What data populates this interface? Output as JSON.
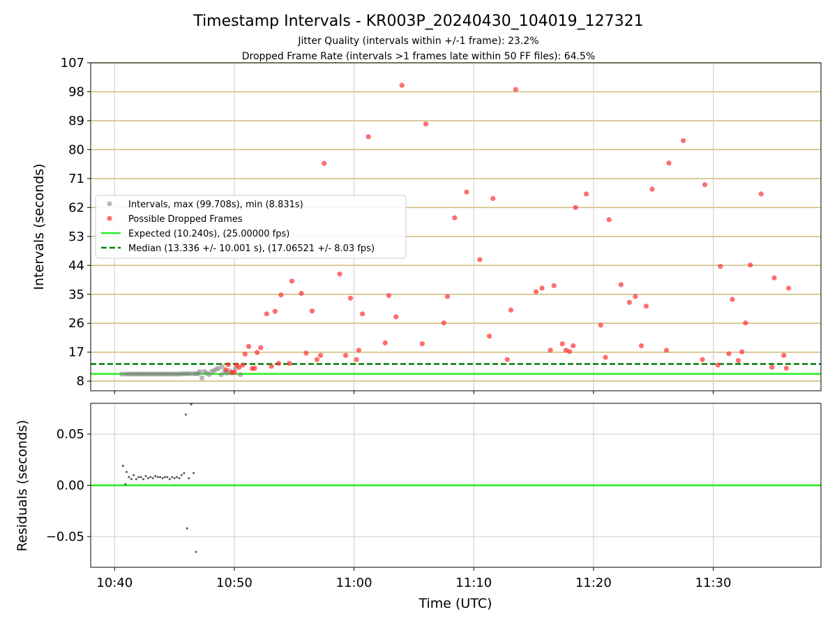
{
  "figure": {
    "title": "Timestamp Intervals - KR003P_20240430_104019_127321",
    "subtitle1": "Jitter Quality (intervals within +/-1 frame): 23.2%",
    "subtitle2": "Dropped Frame Rate (intervals >1 frames late within 50 FF files): 64.5%",
    "xlabel": "Time (UTC)"
  },
  "colors": {
    "gray_points": "#808080",
    "red_points": "#ff3030",
    "expected_line": "#22ee22",
    "median_line": "#007f00",
    "frame_lines": "#cfb97a",
    "grid": "#cccccc"
  },
  "chart_data": [
    {
      "type": "scatter",
      "name": "intervals",
      "ylabel": "Intervals (seconds)",
      "ylim": [
        5.0,
        107.0
      ],
      "xlim_minutes": [
        38.0,
        99.0
      ],
      "x_ticks": [
        {
          "label": "10:40",
          "minute": 40
        },
        {
          "label": "10:50",
          "minute": 50
        },
        {
          "label": "11:00",
          "minute": 60
        },
        {
          "label": "11:10",
          "minute": 70
        },
        {
          "label": "11:20",
          "minute": 80
        },
        {
          "label": "11:30",
          "minute": 90
        }
      ],
      "y_ticks": [
        8,
        17,
        26,
        35,
        44,
        53,
        62,
        71,
        80,
        89,
        98,
        107
      ],
      "grid": true,
      "legend_position": "center-left",
      "legend": [
        {
          "label": "Intervals, max (99.708s), min (8.831s)",
          "kind": "gray-dot"
        },
        {
          "label": "Possible Dropped Frames",
          "kind": "red-dot"
        },
        {
          "label": "Expected (10.240s), (25.00000 fps)",
          "kind": "green-line"
        },
        {
          "label": "Median (13.336 +/- 10.001 s), (17.06521 +/- 8.03 fps)",
          "kind": "dashed-line"
        }
      ],
      "expected_value": 10.24,
      "median_value": 13.336,
      "series": [
        {
          "name": "Intervals, max (99.708s), min (8.831s)",
          "points": [
            [
              40.6,
              10.2
            ],
            [
              40.9,
              10.2
            ],
            [
              41.1,
              10.2
            ],
            [
              41.3,
              10.2
            ],
            [
              41.5,
              10.2
            ],
            [
              41.7,
              10.2
            ],
            [
              41.9,
              10.2
            ],
            [
              42.1,
              10.2
            ],
            [
              42.3,
              10.2
            ],
            [
              42.5,
              10.2
            ],
            [
              42.7,
              10.2
            ],
            [
              42.9,
              10.2
            ],
            [
              43.1,
              10.2
            ],
            [
              43.3,
              10.2
            ],
            [
              43.5,
              10.2
            ],
            [
              43.7,
              10.2
            ],
            [
              43.9,
              10.2
            ],
            [
              44.1,
              10.2
            ],
            [
              44.3,
              10.2
            ],
            [
              44.5,
              10.2
            ],
            [
              44.7,
              10.2
            ],
            [
              44.9,
              10.2
            ],
            [
              45.1,
              10.2
            ],
            [
              45.3,
              10.2
            ],
            [
              45.5,
              10.2
            ],
            [
              45.7,
              10.3
            ],
            [
              45.9,
              10.3
            ],
            [
              46.1,
              10.3
            ],
            [
              46.3,
              10.3
            ],
            [
              46.6,
              10.3
            ],
            [
              46.8,
              10.3
            ],
            [
              47.0,
              10.3
            ],
            [
              47.1,
              11.0
            ],
            [
              47.3,
              9.0
            ],
            [
              47.5,
              11.0
            ],
            [
              47.7,
              10.5
            ],
            [
              47.9,
              10.0
            ],
            [
              48.1,
              11.0
            ],
            [
              48.3,
              11.3
            ],
            [
              48.5,
              11.7
            ],
            [
              48.7,
              12.0
            ],
            [
              48.9,
              10.0
            ],
            [
              49.0,
              12.5
            ],
            [
              49.2,
              11.0
            ],
            [
              49.4,
              10.5
            ],
            [
              49.6,
              11.2
            ],
            [
              49.8,
              10.8
            ],
            [
              50.1,
              12.0
            ],
            [
              50.5,
              10.0
            ]
          ]
        },
        {
          "name": "Possible Dropped Frames",
          "points": [
            [
              49.3,
              11.5
            ],
            [
              49.5,
              13.1
            ],
            [
              49.8,
              10.6
            ],
            [
              50.0,
              10.8
            ],
            [
              50.2,
              13.0
            ],
            [
              50.4,
              12.3
            ],
            [
              50.7,
              13.0
            ],
            [
              50.9,
              16.4
            ],
            [
              51.2,
              18.8
            ],
            [
              51.5,
              11.9
            ],
            [
              51.7,
              12.0
            ],
            [
              51.9,
              16.9
            ],
            [
              52.2,
              18.4
            ],
            [
              52.7,
              28.9
            ],
            [
              53.1,
              12.6
            ],
            [
              53.4,
              29.7
            ],
            [
              53.7,
              13.5
            ],
            [
              53.9,
              34.8
            ],
            [
              54.6,
              13.5
            ],
            [
              54.8,
              39.1
            ],
            [
              55.6,
              35.3
            ],
            [
              56.0,
              16.7
            ],
            [
              56.5,
              29.8
            ],
            [
              56.9,
              14.7
            ],
            [
              57.2,
              16.0
            ],
            [
              57.5,
              75.7
            ],
            [
              58.8,
              41.3
            ],
            [
              59.3,
              16.0
            ],
            [
              59.7,
              33.8
            ],
            [
              60.2,
              14.7
            ],
            [
              60.4,
              17.6
            ],
            [
              60.7,
              28.9
            ],
            [
              61.2,
              84.0
            ],
            [
              62.6,
              19.9
            ],
            [
              62.9,
              34.6
            ],
            [
              63.5,
              28.0
            ],
            [
              64.0,
              100.0
            ],
            [
              65.7,
              19.6
            ],
            [
              66.0,
              88.0
            ],
            [
              67.5,
              26.1
            ],
            [
              67.8,
              34.3
            ],
            [
              68.4,
              58.8
            ],
            [
              69.4,
              66.8
            ],
            [
              70.5,
              45.8
            ],
            [
              71.3,
              22.0
            ],
            [
              71.6,
              64.8
            ],
            [
              72.8,
              14.7
            ],
            [
              73.1,
              30.1
            ],
            [
              73.5,
              98.7
            ],
            [
              75.2,
              35.8
            ],
            [
              75.7,
              36.9
            ],
            [
              76.4,
              17.6
            ],
            [
              76.7,
              37.7
            ],
            [
              77.4,
              19.6
            ],
            [
              77.7,
              17.6
            ],
            [
              78.0,
              17.2
            ],
            [
              78.3,
              19.0
            ],
            [
              78.5,
              62.0
            ],
            [
              79.4,
              66.2
            ],
            [
              80.6,
              25.4
            ],
            [
              81.0,
              15.4
            ],
            [
              81.3,
              58.2
            ],
            [
              82.3,
              38.0
            ],
            [
              83.0,
              32.5
            ],
            [
              83.5,
              34.3
            ],
            [
              84.0,
              19.0
            ],
            [
              84.4,
              31.3
            ],
            [
              84.9,
              67.7
            ],
            [
              86.1,
              17.6
            ],
            [
              86.3,
              75.8
            ],
            [
              87.5,
              82.8
            ],
            [
              89.1,
              14.7
            ],
            [
              89.3,
              69.1
            ],
            [
              90.4,
              13.0
            ],
            [
              90.6,
              43.7
            ],
            [
              91.3,
              16.5
            ],
            [
              91.6,
              33.4
            ],
            [
              92.1,
              14.4
            ],
            [
              92.4,
              17.1
            ],
            [
              92.7,
              26.1
            ],
            [
              93.1,
              44.1
            ],
            [
              94.0,
              66.2
            ],
            [
              94.9,
              12.3
            ],
            [
              95.1,
              40.1
            ],
            [
              95.9,
              16.0
            ],
            [
              96.1,
              12.0
            ],
            [
              96.3,
              36.9
            ]
          ]
        }
      ]
    },
    {
      "type": "scatter",
      "name": "residuals",
      "ylabel": "Residuals (seconds)",
      "ylim": [
        -0.08,
        0.08
      ],
      "y_ticks": [
        {
          "label": "0.05",
          "value": 0.05
        },
        {
          "label": "0.00",
          "value": 0.0
        },
        {
          "label": "−0.05",
          "value": -0.05
        }
      ],
      "zero_line": 0.0,
      "grid": true,
      "series": [
        {
          "name": "residuals",
          "points": [
            [
              40.7,
              0.019
            ],
            [
              40.9,
              0.001
            ],
            [
              41.0,
              0.013
            ],
            [
              41.2,
              0.008
            ],
            [
              41.4,
              0.006
            ],
            [
              41.6,
              0.01
            ],
            [
              41.8,
              0.006
            ],
            [
              42.0,
              0.008
            ],
            [
              42.2,
              0.008
            ],
            [
              42.4,
              0.006
            ],
            [
              42.6,
              0.009
            ],
            [
              42.8,
              0.007
            ],
            [
              43.0,
              0.008
            ],
            [
              43.2,
              0.007
            ],
            [
              43.4,
              0.009
            ],
            [
              43.6,
              0.008
            ],
            [
              43.8,
              0.008
            ],
            [
              44.0,
              0.007
            ],
            [
              44.2,
              0.008
            ],
            [
              44.4,
              0.008
            ],
            [
              44.6,
              0.006
            ],
            [
              44.8,
              0.008
            ],
            [
              45.0,
              0.007
            ],
            [
              45.2,
              0.008
            ],
            [
              45.4,
              0.007
            ],
            [
              45.6,
              0.01
            ],
            [
              45.8,
              0.012
            ],
            [
              45.95,
              0.069
            ],
            [
              46.05,
              -0.042
            ],
            [
              46.2,
              0.007
            ],
            [
              46.4,
              0.079
            ],
            [
              46.6,
              0.012
            ],
            [
              46.8,
              -0.065
            ]
          ]
        }
      ]
    }
  ]
}
